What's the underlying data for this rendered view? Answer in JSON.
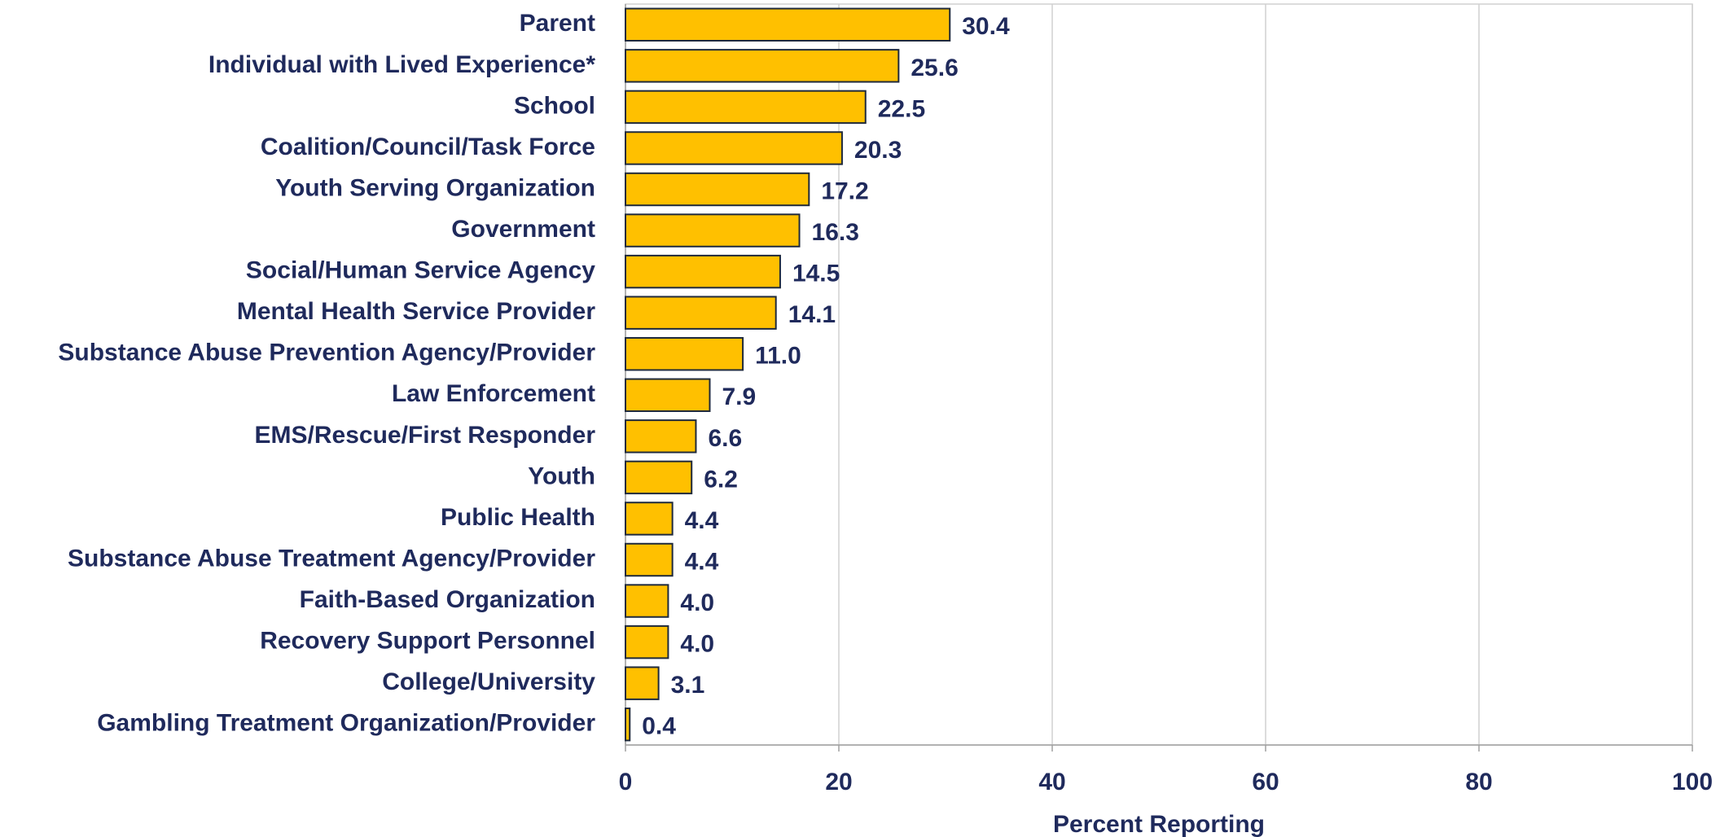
{
  "chart_data": {
    "type": "bar",
    "orientation": "horizontal",
    "x_label": "Percent Reporting",
    "categories": [
      "Parent",
      "Individual with Lived Experience*",
      "School",
      "Coalition/Council/Task Force",
      "Youth Serving Organization",
      "Government",
      "Social/Human Service Agency",
      "Mental Health Service Provider",
      "Substance Abuse Prevention Agency/Provider",
      "Law Enforcement",
      "EMS/Rescue/First Responder",
      "Youth",
      "Public Health",
      "Substance Abuse Treatment Agency/Provider",
      "Faith-Based Organization",
      "Recovery Support Personnel",
      "College/University",
      "Gambling Treatment Organization/Provider"
    ],
    "values": [
      30.4,
      25.6,
      22.5,
      20.3,
      17.2,
      16.3,
      14.5,
      14.1,
      11.0,
      7.9,
      6.6,
      6.2,
      4.4,
      4.4,
      4.0,
      4.0,
      3.1,
      0.4
    ],
    "value_labels": [
      "30.4",
      "25.6",
      "22.5",
      "20.3",
      "17.2",
      "16.3",
      "14.5",
      "14.1",
      "11.0",
      "7.9",
      "6.6",
      "6.2",
      "4.4",
      "4.4",
      "4.0",
      "4.0",
      "3.1",
      "0.4"
    ],
    "color": "#ffc000",
    "xlim": [
      0,
      100
    ],
    "xticks": [
      0,
      20,
      40,
      60,
      80,
      100
    ],
    "grid": true
  }
}
